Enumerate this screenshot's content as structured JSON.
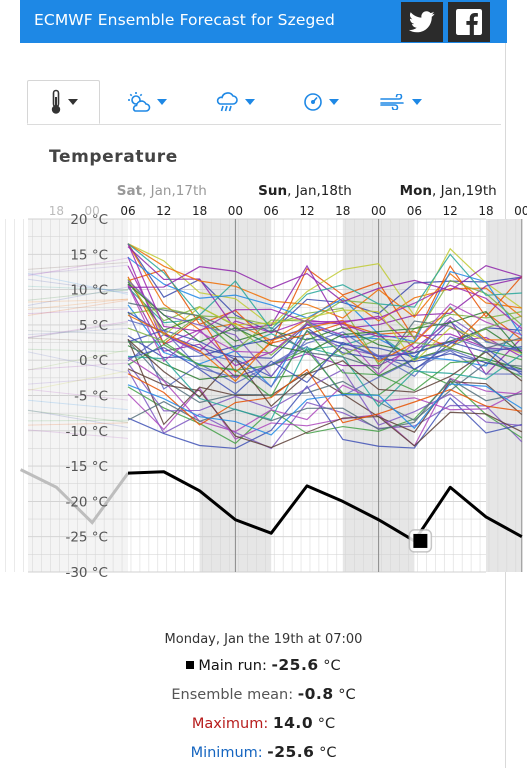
{
  "header": {
    "title": "ECMWF Ensemble Forecast for Szeged",
    "twitter_icon": "twitter-icon",
    "facebook_icon": "facebook-icon",
    "color": "#1e88e5"
  },
  "toolbar": {
    "items": [
      {
        "icon": "thermometer-icon",
        "active": true
      },
      {
        "icon": "sun-cloud-icon",
        "active": false
      },
      {
        "icon": "rain-cloud-icon",
        "active": false
      },
      {
        "icon": "gauge-icon",
        "active": false
      },
      {
        "icon": "wind-icon",
        "active": false
      }
    ],
    "accent": "#1e88e5"
  },
  "chart_data": {
    "type": "line",
    "title": "Temperature",
    "ylim": [
      -30,
      20
    ],
    "yticks": [
      "20 °C",
      "15 °C",
      "10 °C",
      "5 °C",
      "0 °C",
      "-5 °C",
      "-10 °C",
      "-15 °C",
      "-20 °C",
      "-25 °C",
      "-30 °C"
    ],
    "day_labels": [
      {
        "day": "Sat",
        "date": ", Jan,17th"
      },
      {
        "day": "Sun",
        "date": ", Jan,18th"
      },
      {
        "day": "Mon",
        "date": ", Jan,19th"
      }
    ],
    "hour_labels": [
      "18",
      "00",
      "06",
      "12",
      "18",
      "00",
      "06",
      "12",
      "18",
      "00",
      "06",
      "12",
      "18",
      "00"
    ],
    "x_hours": [
      -6,
      0,
      6,
      12,
      18,
      24,
      30,
      36,
      42,
      48,
      54,
      60,
      66,
      72
    ],
    "main_run": {
      "name": "Main run",
      "x": [
        -12,
        -6,
        0,
        6,
        12,
        18,
        24,
        30,
        36,
        42,
        48,
        54,
        60,
        66,
        72
      ],
      "values": [
        -15.5,
        -18,
        -23,
        -16,
        -15.8,
        -18.5,
        -22.6,
        -24.5,
        -17.8,
        -20,
        -22.6,
        -25.6,
        -18,
        -22.2,
        -25
      ]
    },
    "ensemble_mean_sample": {
      "x": [
        6,
        12,
        18,
        24,
        30,
        36,
        42,
        48,
        54,
        60,
        66,
        72
      ],
      "values": [
        3.5,
        2.0,
        0.5,
        -0.5,
        -1.5,
        2.0,
        0.5,
        0.0,
        -0.8,
        2.5,
        1.0,
        0.5
      ]
    },
    "highlight": {
      "x": 55,
      "y": -25.6
    },
    "tooltip": {
      "date": "Monday, Jan the 19th at 07:00",
      "main_label": "Main run:",
      "main_value": "-25.6",
      "mean_label": "Ensemble mean:",
      "mean_value": "-0.8",
      "max_label": "Maximum:",
      "max_value": "14.0",
      "min_label": "Minimum:",
      "min_value": "-25.6",
      "unit": "°C"
    },
    "colors": {
      "main": "#000000",
      "max": "#b71c1c",
      "min": "#1565c0",
      "night_band": "#e6e6e6",
      "grid": "#cfcfcf"
    }
  }
}
